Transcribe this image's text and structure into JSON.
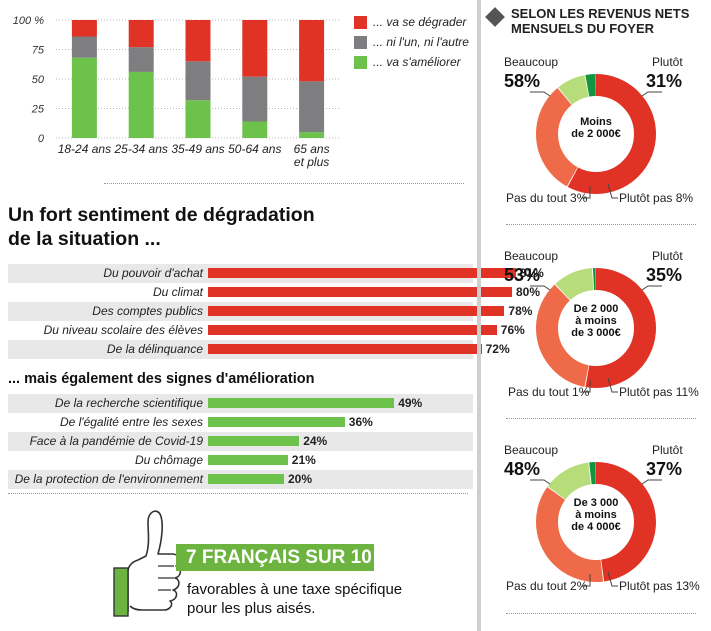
{
  "colors": {
    "red": "#e03325",
    "gray": "#7e7e80",
    "green": "#6cc24a",
    "orange": "#ef6a48",
    "lightgreen": "#b7dd7a",
    "darkgreen": "#139443",
    "banner_green": "#6cb33f"
  },
  "age_chart": {
    "y_ticks": [
      "100 %",
      "75",
      "50",
      "25",
      "0"
    ],
    "legend": [
      "... va se dégrader",
      "... ni l'un, ni l'autre",
      "... va s'améliorer"
    ],
    "chart_data": {
      "type": "bar",
      "stacked": true,
      "categories": [
        "18-24 ans",
        "25-34 ans",
        "35-49 ans",
        "50-64 ans",
        "65 ans et plus"
      ],
      "category_lines": [
        [
          "18-24 ans"
        ],
        [
          "25-34 ans"
        ],
        [
          "35-49 ans"
        ],
        [
          "50-64 ans"
        ],
        [
          "65 ans",
          "et plus"
        ]
      ],
      "ylim": [
        0,
        100
      ],
      "series": [
        {
          "name": "... va s'améliorer",
          "values": [
            68,
            56,
            32,
            14,
            5
          ]
        },
        {
          "name": "... ni l'un, ni l'autre",
          "values": [
            18,
            21,
            33,
            38,
            43
          ]
        },
        {
          "name": "... va se dégrader",
          "values": [
            14,
            23,
            35,
            48,
            52
          ]
        }
      ]
    }
  },
  "degradation": {
    "title_line1": "Un fort sentiment de dégradation",
    "title_line2": "de la situation ...",
    "chart_data": {
      "type": "bar",
      "orientation": "horizontal",
      "categories": [
        "Du pouvoir d'achat",
        "Du climat",
        "Des comptes publics",
        "Du niveau scolaire des élèves",
        "De la délinquance"
      ],
      "values": [
        81,
        80,
        78,
        76,
        72
      ],
      "labels": [
        "81%",
        "80%",
        "78%",
        "76%",
        "72%"
      ]
    }
  },
  "amelioration": {
    "title": "... mais également des signes d'amélioration",
    "chart_data": {
      "type": "bar",
      "orientation": "horizontal",
      "categories": [
        "De la recherche scientifique",
        "De l'égalité entre les sexes",
        "Face à la pandémie de Covid-19",
        "Du chômage",
        "De la protection de l'environnement"
      ],
      "values": [
        49,
        36,
        24,
        21,
        20
      ],
      "labels": [
        "49%",
        "36%",
        "24%",
        "21%",
        "20%"
      ]
    }
  },
  "banner": {
    "headline": "7 FRANÇAIS SUR 10",
    "line1": "favorables à une taxe spécifique",
    "line2": "pour les plus aisés."
  },
  "revenus": {
    "title_line1": "SELON LES REVENUS NETS",
    "title_line2": "MENSUELS DU FOYER",
    "donuts": [
      {
        "center": [
          "Moins",
          "de 2 000€"
        ],
        "beaucoup_label": "Beaucoup",
        "beaucoup_pct": "58%",
        "plutot_label": "Plutôt",
        "plutot_pct": "31%",
        "pasdutout_label": "Pas du tout 3%",
        "plutotpas_label": "Plutôt pas 8%",
        "chart_data": {
          "type": "pie",
          "labels": [
            "Beaucoup",
            "Plutôt",
            "Plutôt pas",
            "Pas du tout"
          ],
          "values": [
            58,
            31,
            8,
            3
          ]
        }
      },
      {
        "center": [
          "De 2 000",
          "à moins",
          "de 3 000€"
        ],
        "beaucoup_label": "Beaucoup",
        "beaucoup_pct": "53%",
        "plutot_label": "Plutôt",
        "plutot_pct": "35%",
        "pasdutout_label": "Pas du tout 1%",
        "plutotpas_label": "Plutôt pas 11%",
        "chart_data": {
          "type": "pie",
          "labels": [
            "Beaucoup",
            "Plutôt",
            "Plutôt pas",
            "Pas du tout"
          ],
          "values": [
            53,
            35,
            11,
            1
          ]
        }
      },
      {
        "center": [
          "De 3 000",
          "à moins",
          "de 4 000€"
        ],
        "beaucoup_label": "Beaucoup",
        "beaucoup_pct": "48%",
        "plutot_label": "Plutôt",
        "plutot_pct": "37%",
        "pasdutout_label": "Pas du tout 2%",
        "plutotpas_label": "Plutôt pas 13%",
        "chart_data": {
          "type": "pie",
          "labels": [
            "Beaucoup",
            "Plutôt",
            "Plutôt pas",
            "Pas du tout"
          ],
          "values": [
            48,
            37,
            13,
            2
          ]
        }
      }
    ]
  }
}
